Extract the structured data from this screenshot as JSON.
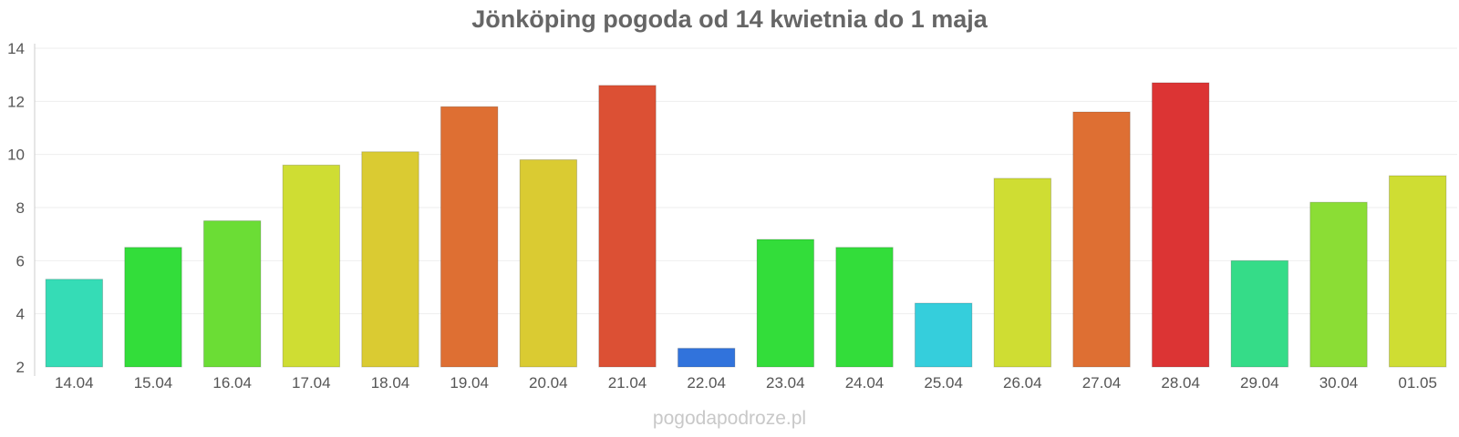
{
  "chart_data": {
    "type": "bar",
    "title": "Jönköping pogoda od 14 kwietnia do 1 maja",
    "xlabel": "",
    "ylabel": "",
    "ylim": [
      2,
      14
    ],
    "yticks": [
      2,
      4,
      6,
      8,
      10,
      12,
      14
    ],
    "grid": true,
    "legend": "none",
    "categories": [
      "14.04",
      "15.04",
      "16.04",
      "17.04",
      "18.04",
      "19.04",
      "20.04",
      "21.04",
      "22.04",
      "23.04",
      "24.04",
      "25.04",
      "26.04",
      "27.04",
      "28.04",
      "29.04",
      "30.04",
      "01.05"
    ],
    "values": [
      5.3,
      6.5,
      7.5,
      9.6,
      10.1,
      11.8,
      9.8,
      12.6,
      2.7,
      6.8,
      6.5,
      4.4,
      9.1,
      11.6,
      12.7,
      6.0,
      8.2,
      9.2
    ],
    "colors": [
      "#35dcb6",
      "#33dd3a",
      "#6bdd35",
      "#cfdd33",
      "#dacb32",
      "#de6f33",
      "#dacb32",
      "#dc5034",
      "#3173dc",
      "#33dd3a",
      "#33dd3a",
      "#35cedc",
      "#cfdd33",
      "#de6f33",
      "#dc3434",
      "#35dc88",
      "#8bdd35",
      "#cfdd33"
    ]
  },
  "footer": {
    "watermark": "pogodapodroze.pl"
  }
}
